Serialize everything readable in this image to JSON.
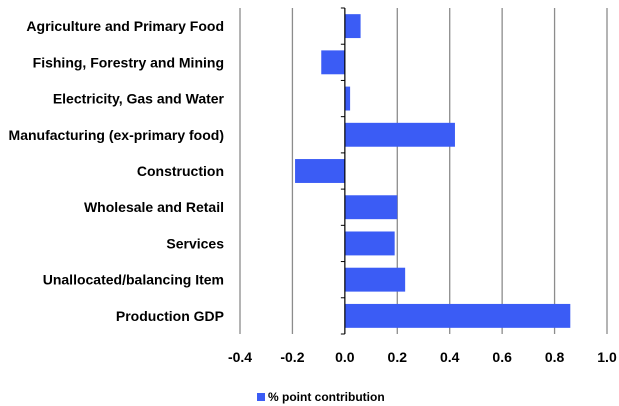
{
  "colors": {
    "bar": "#3b5cf5",
    "grid": "#8c8c8c",
    "axis": "#000000"
  },
  "chart_data": {
    "type": "bar",
    "orientation": "horizontal",
    "categories": [
      "Agriculture and Primary Food",
      "Fishing, Forestry and Mining",
      "Electricity, Gas and Water",
      "Manufacturing (ex-primary food)",
      "Construction",
      "Wholesale and Retail",
      "Services",
      "Unallocated/balancing Item",
      "Production GDP"
    ],
    "series": [
      {
        "name": "% point contribution",
        "values": [
          0.06,
          -0.09,
          0.02,
          0.42,
          -0.19,
          0.2,
          0.19,
          0.23,
          0.86
        ]
      }
    ],
    "xlim": [
      -0.4,
      1.0
    ],
    "xticks": [
      -0.4,
      -0.2,
      0.0,
      0.2,
      0.4,
      0.6,
      0.8,
      1.0
    ],
    "xtick_labels": [
      "-0.4",
      "-0.2",
      "0.0",
      "0.2",
      "0.4",
      "0.6",
      "0.8",
      "1.0"
    ],
    "grid": "vertical",
    "legend_position": "bottom-center"
  }
}
